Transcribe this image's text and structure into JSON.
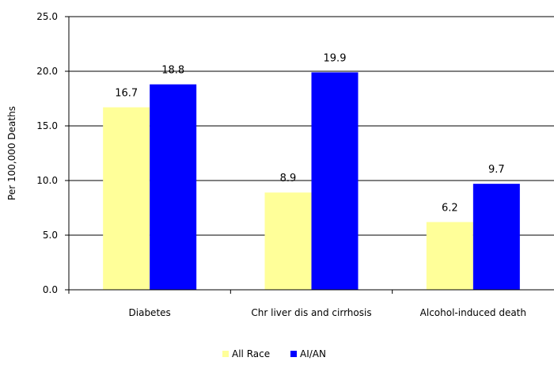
{
  "chart_data": {
    "type": "bar",
    "title": "",
    "xlabel": "",
    "ylabel": "Per 100,000 Deaths",
    "ylim": [
      0,
      25
    ],
    "yticks": [
      "0.0",
      "5.0",
      "10.0",
      "15.0",
      "20.0",
      "25.0"
    ],
    "categories": [
      "Diabetes",
      "Chr liver dis and cirrhosis",
      "Alcohol-induced death"
    ],
    "series": [
      {
        "name": "All Race",
        "color": "#ffff99",
        "values": [
          16.7,
          8.9,
          6.2
        ],
        "labels": [
          "16.7",
          "8.9",
          "6.2"
        ]
      },
      {
        "name": "AI/AN",
        "color": "#0000ff",
        "values": [
          18.8,
          19.9,
          9.7
        ],
        "labels": [
          "18.8",
          "19.9",
          "9.7"
        ]
      }
    ],
    "grid": true,
    "legend_position": "bottom"
  }
}
